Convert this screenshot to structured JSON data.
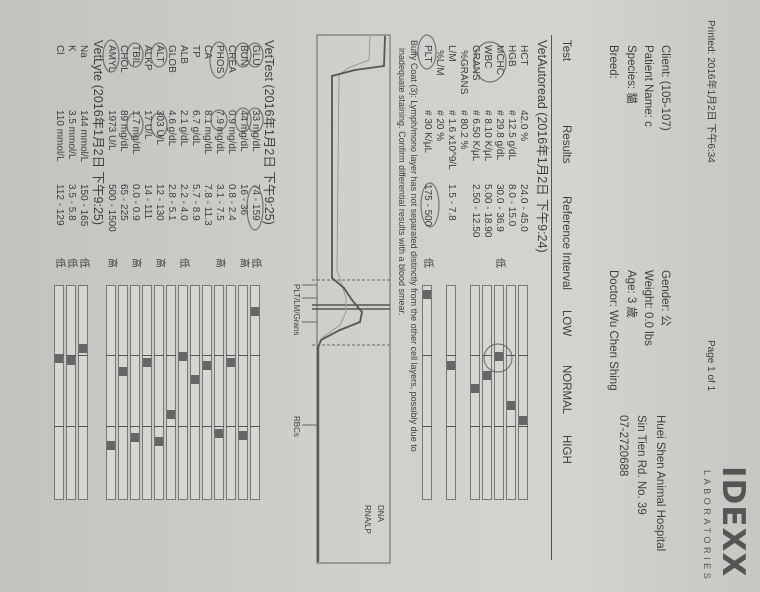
{
  "header": {
    "printed": "Printed: 2016年1月2日 下午6:34",
    "page": "Page 1 of 1",
    "logo": "IDEXX",
    "logo_sub": "LABORATORIES"
  },
  "patient": {
    "client": "Client:  (105-107)",
    "patient_name": "Patient Name: c",
    "species": "Species: 貓",
    "breed": "Breed:",
    "gender": "Gender: 公",
    "weight": "Weight: 0.0 lbs",
    "age": "Age: 3 歲",
    "doctor": "Doctor: Wu Chen Shing"
  },
  "clinic": {
    "name": "Huei Shen Animal Hospital",
    "address": "Sin Tien Rd. No. 39",
    "phone": "07-2720688"
  },
  "columns": {
    "test": "Test",
    "results": "Results",
    "reference": "Reference Interval",
    "low": "LOW",
    "normal": "NORMAL",
    "high": "HIGH"
  },
  "colors": {
    "paper": "#cfcfcc",
    "ink": "#3e3e3e",
    "marker": "#666666",
    "pen": "#555555"
  },
  "sections": [
    {
      "title": "VetAutoread (2016年1月2日 下午9:24)",
      "rows": [
        {
          "test": "HCT",
          "result": "42.0 %",
          "ref": "24.0 - 45.0",
          "flag": "",
          "marker": 0.61
        },
        {
          "test": "HGB",
          "result": "# 12.5 g/dL",
          "ref": "8.0 - 15.0",
          "flag": "",
          "marker": 0.54
        },
        {
          "test": "MCHC",
          "result": "# 29.8 g/dL",
          "ref": "30.0 - 36.9",
          "flag": "低",
          "marker": 0.31
        },
        {
          "test": "WBC",
          "result": "# 8.10 K/μL",
          "ref": "5.00 - 18.90",
          "flag": "",
          "marker": 0.4
        },
        {
          "test": "GRANS",
          "result": "# 6.50 K/μL",
          "ref": "2.50 - 12.50",
          "flag": "",
          "marker": 0.46
        },
        {
          "test": "%GRANS",
          "result": "# 80.2 %",
          "ref": "",
          "flag": "",
          "marker": null
        },
        {
          "test": "L/M",
          "result": "# 1.6 x10^9/L",
          "ref": "1.5 - 7.8",
          "flag": "",
          "marker": 0.35
        },
        {
          "test": "%L/M",
          "result": "# 20 %",
          "ref": "",
          "flag": "",
          "marker": null
        },
        {
          "test": "PLT",
          "result": "# 30 K/μL",
          "ref": "175 - 500",
          "flag": "低",
          "marker": 0.02
        }
      ],
      "note": [
        "Buffy Coat (3): Lymph/mono layer has not separated distinctly from the other cell layers, possibly due to",
        "inadequate staining.  Confirm differential results with a blood smear."
      ]
    },
    {
      "title": "VetTest (2016年1月2日 下午9:25)",
      "rows": [
        {
          "test": "GLU",
          "result": "33 mg/dL",
          "ref": "74 - 159",
          "flag": "低",
          "marker": 0.1
        },
        {
          "test": "BUN",
          "result": "44 mg/dL",
          "ref": "16 - 36",
          "flag": "高",
          "marker": 0.68
        },
        {
          "test": "CREA",
          "result": "0.9 mg/dL",
          "ref": "0.8 - 2.4",
          "flag": "",
          "marker": 0.34
        },
        {
          "test": "PHOS",
          "result": "7.9 mg/dL",
          "ref": "3.1 - 7.5",
          "flag": "高",
          "marker": 0.67
        },
        {
          "test": "CA",
          "result": "8.1 mg/dL",
          "ref": "7.8 - 11.3",
          "flag": "",
          "marker": 0.35
        },
        {
          "test": "TP",
          "result": "6.7 g/dL",
          "ref": "5.7 - 8.9",
          "flag": "",
          "marker": 0.42
        },
        {
          "test": "ALB",
          "result": "2.1 g/dL",
          "ref": "2.2 - 4.0",
          "flag": "低",
          "marker": 0.31
        },
        {
          "test": "GLOB",
          "result": "4.6 g/dL",
          "ref": "2.8 - 5.1",
          "flag": "",
          "marker": 0.58
        },
        {
          "test": "ALT",
          "result": "303 U/L",
          "ref": "12 - 130",
          "flag": "高",
          "marker": 0.71
        },
        {
          "test": "ALKP",
          "result": "17 U/L",
          "ref": "14 - 111",
          "flag": "",
          "marker": 0.34
        },
        {
          "test": "TBIL",
          "result": "1.7 mg/dL",
          "ref": "0.0 - 0.9",
          "flag": "高",
          "marker": 0.69
        },
        {
          "test": "CHOL",
          "result": "89 mg/dL",
          "ref": "65 - 225",
          "flag": "",
          "marker": 0.38
        },
        {
          "test": "AMYL",
          "result": "1973 U/L",
          "ref": "500 - 1500",
          "flag": "高",
          "marker": 0.73
        }
      ]
    },
    {
      "title": "VetLyte (2016年1月2日 下午9:25)",
      "rows": [
        {
          "test": "Na",
          "result": "144 mmol/L",
          "ref": "150 - 165",
          "flag": "低",
          "marker": 0.27
        },
        {
          "test": "K",
          "result": "3.5 mmol/L",
          "ref": "3.5 - 5.8",
          "flag": "低",
          "marker": 0.33
        },
        {
          "test": "Cl",
          "result": "110 mmol/L",
          "ref": "112 - 129",
          "flag": "低",
          "marker": 0.32
        }
      ]
    }
  ],
  "histogram": {
    "label_plt": "PLT/LM/Grans",
    "label_rbc": "RBCs",
    "legend": [
      "DNA",
      "RNA/LP"
    ]
  }
}
